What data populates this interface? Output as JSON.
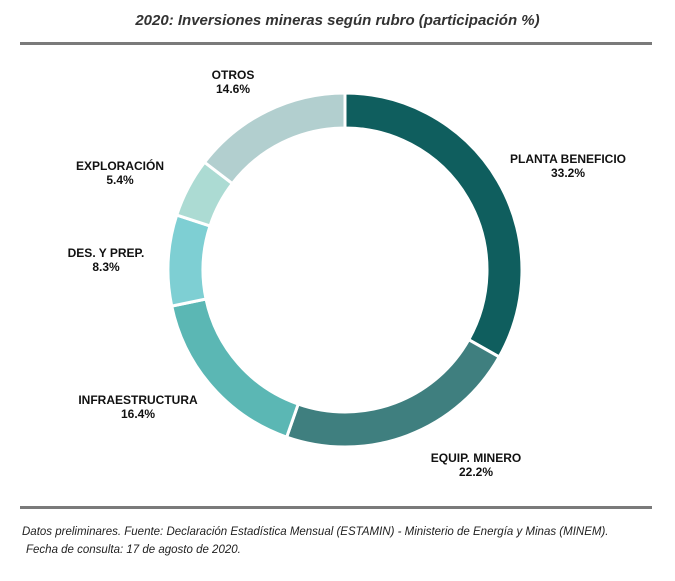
{
  "title": "2020: Inversiones mineras según rubro (participación %)",
  "footer": {
    "line1": "Datos preliminares. Fuente: Declaración Estadística Mensual (ESTAMIN) - Ministerio de Energía y Minas (MINEM).",
    "line2": "Fecha de consulta: 17 de agosto de 2020."
  },
  "chart_data": {
    "type": "pie",
    "title": "2020: Inversiones mineras según rubro (participación %)",
    "categories": [
      "PLANTA BENEFICIO",
      "EQUIP. MINERO",
      "INFRAESTRUCTURA",
      "DES. Y PREP.",
      "EXPLORACIÓN",
      "OTROS"
    ],
    "values": [
      33.2,
      22.2,
      16.4,
      8.3,
      5.4,
      14.6
    ],
    "value_labels": [
      "33.2%",
      "22.2%",
      "16.4%",
      "8.3%",
      "5.4%",
      "14.6%"
    ],
    "colors": [
      "#0f5e5e",
      "#3f7f7f",
      "#5bb7b4",
      "#7ecfd3",
      "#acdbd3",
      "#b2cfcf"
    ],
    "donut": true,
    "legend": "none"
  }
}
